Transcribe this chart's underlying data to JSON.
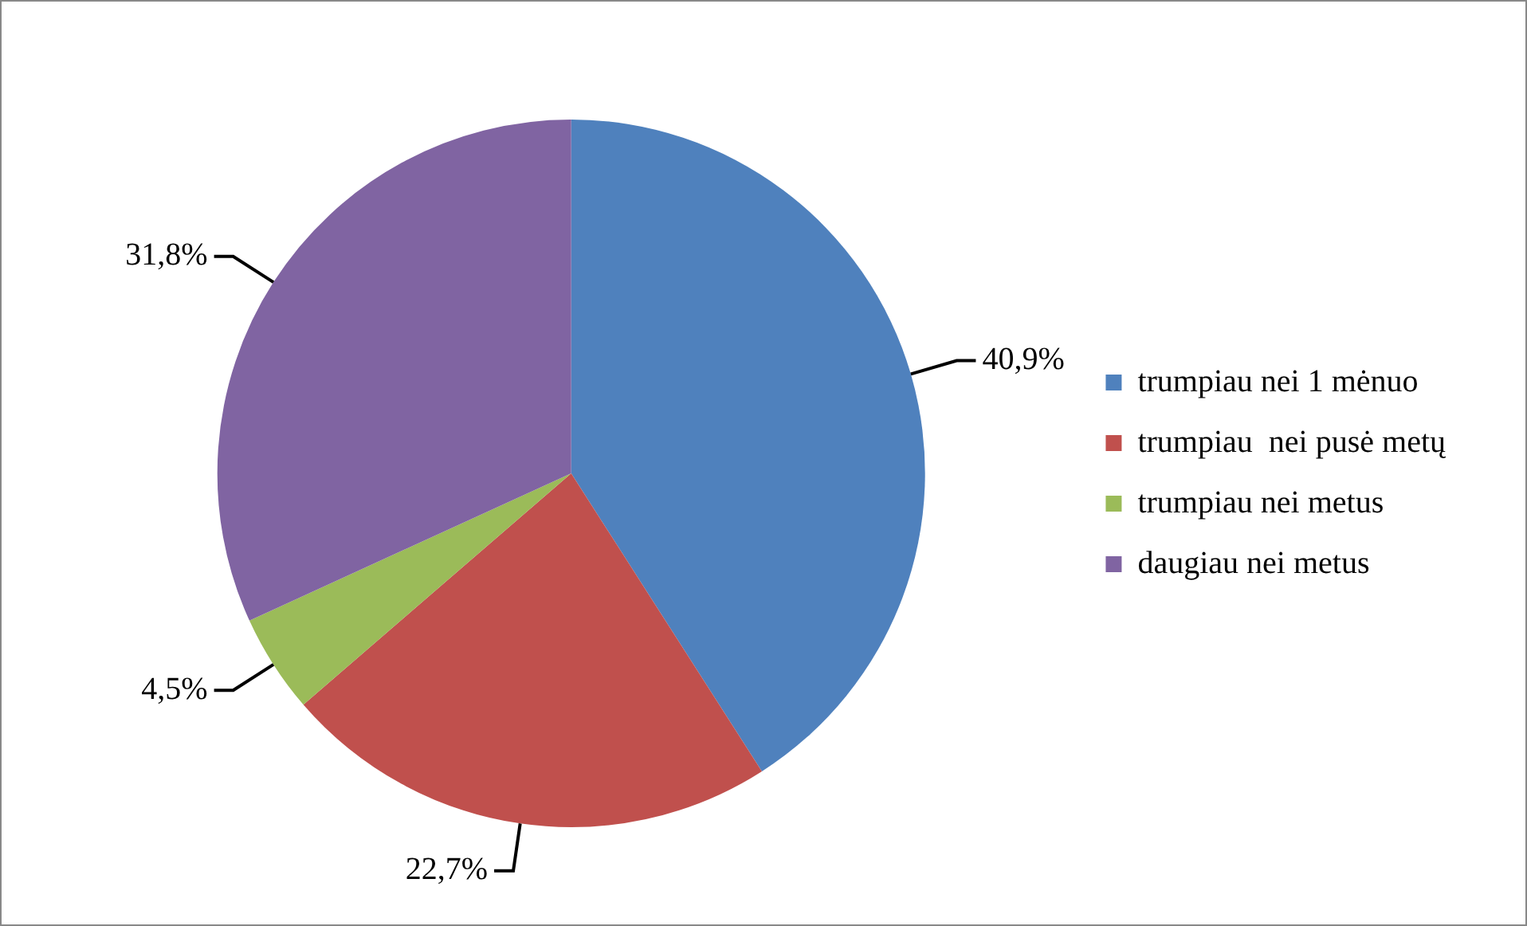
{
  "chart_data": {
    "type": "pie",
    "categories": [
      "trumpiau nei 1 mėnuo",
      "trumpiau  nei pusė metų",
      "trumpiau nei metus",
      "daugiau nei metus"
    ],
    "values": [
      40.9,
      22.7,
      4.5,
      31.8
    ],
    "value_labels": [
      "40,9%",
      "22,7%",
      "4,5%",
      "31,8%"
    ],
    "colors": [
      "#4f81bd",
      "#c0504d",
      "#9bbb59",
      "#8064a2"
    ],
    "legend": "right"
  }
}
